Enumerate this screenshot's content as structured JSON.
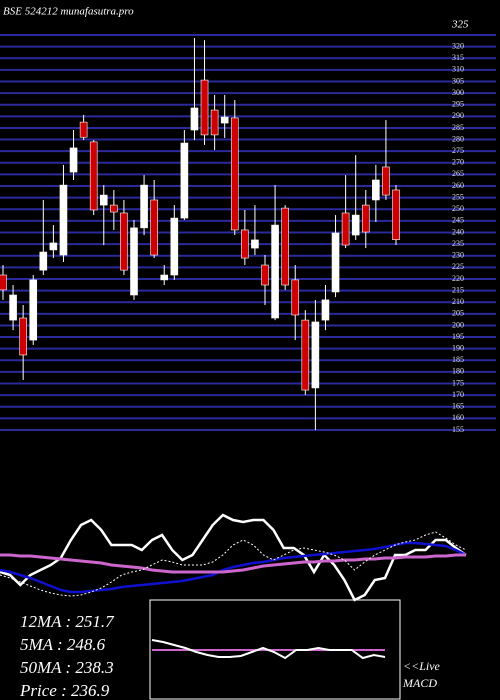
{
  "chart_data": [
    {
      "type": "candlestick",
      "title": "BSE 524212 munafasutra.pro",
      "ylim": [
        155,
        325
      ],
      "yticks": [
        155,
        160,
        165,
        170,
        175,
        180,
        185,
        190,
        195,
        200,
        205,
        210,
        215,
        220,
        225,
        230,
        235,
        240,
        245,
        250,
        255,
        260,
        265,
        270,
        275,
        280,
        285,
        290,
        295,
        300,
        305,
        310,
        315,
        320,
        325
      ],
      "grid": true,
      "grid_color": "#2a2a9c",
      "up_color": "#ffffff",
      "down_color": "#cc0000",
      "open": [
        221.7,
        202.3,
        203.2,
        193.7,
        223.8,
        232.5,
        230.3,
        266.0,
        287.5,
        279.0,
        251.8,
        251.8,
        248.4,
        213.1,
        242.0,
        254.0,
        219.6,
        221.7,
        246.2,
        284.1,
        305.6,
        292.7,
        287.1,
        289.3,
        241.1,
        233.3,
        226.0,
        203.2,
        250.5,
        219.6,
        202.3,
        173.1,
        202.3,
        214.4,
        248.4,
        238.9,
        251.8,
        254.0,
        268.2,
        258.3
      ],
      "high": [
        226.0,
        217.4,
        208.8,
        221.7,
        254.0,
        243.2,
        269.1,
        284.1,
        290.6,
        279.8,
        260.4,
        258.3,
        254.0,
        245.4,
        264.7,
        262.6,
        226.0,
        251.8,
        284.1,
        323.7,
        322.8,
        299.2,
        299.2,
        297.0,
        249.7,
        251.8,
        230.3,
        260.4,
        251.8,
        226.0,
        206.6,
        211.0,
        217.4,
        247.5,
        264.7,
        273.3,
        258.3,
        269.1,
        288.4,
        260.4
      ],
      "low": [
        211.0,
        198.0,
        176.5,
        191.6,
        221.7,
        229.0,
        227.3,
        262.6,
        279.8,
        247.5,
        234.6,
        241.1,
        221.7,
        211.0,
        238.9,
        229.0,
        217.4,
        219.6,
        245.4,
        279.8,
        277.7,
        275.5,
        280.7,
        238.9,
        226.0,
        230.3,
        208.8,
        202.3,
        215.3,
        193.7,
        170.1,
        155.0,
        198.0,
        212.2,
        233.3,
        236.8,
        233.3,
        244.5,
        254.0,
        234.6
      ],
      "close": [
        215.3,
        213.1,
        187.3,
        219.6,
        231.6,
        235.5,
        260.4,
        276.4,
        281.0,
        249.7,
        256.1,
        248.8,
        223.8,
        242.0,
        260.4,
        230.3,
        221.7,
        246.2,
        278.5,
        293.6,
        282.0,
        282.0,
        289.7,
        241.1,
        229.0,
        236.8,
        217.4,
        243.2,
        217.4,
        204.5,
        172.2,
        201.5,
        211.0,
        239.8,
        234.6,
        247.5,
        240.2,
        262.6,
        256.1,
        236.9
      ]
    },
    {
      "type": "line",
      "ylim": [
        0,
        110
      ],
      "annotations": [
        "12MA : 251.7",
        "5MA : 248.6",
        "50MA : 238.3",
        "Price  : 236.9"
      ],
      "series": [
        {
          "color": "#ffffff",
          "width": 2.5,
          "values": [
            28,
            25,
            15,
            25,
            30,
            35,
            42,
            60,
            75,
            80,
            70,
            55,
            55,
            55,
            50,
            60,
            65,
            50,
            40,
            45,
            60,
            75,
            85,
            80,
            78,
            80,
            80,
            70,
            52,
            52,
            45,
            28,
            45,
            35,
            20,
            0,
            5,
            20,
            22,
            45,
            45,
            50,
            50,
            60,
            60,
            52,
            45
          ]
        },
        {
          "color": "#1010d0",
          "width": 2.5,
          "values": [
            30,
            28,
            25,
            22,
            18,
            14,
            10,
            8,
            8,
            9,
            10,
            11,
            13,
            14,
            15,
            16,
            17,
            18,
            19,
            21,
            23,
            25,
            30,
            33,
            35,
            37,
            38,
            40,
            42,
            43,
            44,
            45,
            46,
            47,
            48,
            49,
            50,
            51,
            53,
            55,
            57,
            57,
            56,
            55,
            54,
            50,
            45
          ]
        },
        {
          "color": "#cc66cc",
          "width": 3,
          "values": [
            45,
            45,
            44,
            44,
            43,
            42,
            41,
            40,
            39,
            38,
            37,
            35,
            34,
            33,
            32,
            30,
            29,
            28,
            28,
            28,
            28,
            28,
            28,
            29,
            30,
            32,
            34,
            35,
            36,
            37,
            38,
            38,
            39,
            39,
            40,
            40,
            41,
            41,
            42,
            42,
            43,
            43,
            43,
            44,
            44,
            45,
            45
          ]
        },
        {
          "color": "#ffffff",
          "width": 1,
          "dash": true,
          "values": [
            25,
            22,
            18,
            14,
            10,
            7,
            5,
            4,
            5,
            8,
            12,
            18,
            25,
            28,
            30,
            35,
            40,
            38,
            35,
            35,
            35,
            38,
            45,
            55,
            60,
            55,
            45,
            40,
            45,
            50,
            52,
            50,
            48,
            45,
            40,
            30,
            38,
            45,
            50,
            55,
            58,
            60,
            65,
            68,
            62,
            55,
            50
          ]
        }
      ]
    },
    {
      "type": "line",
      "ylim": [
        0,
        100
      ],
      "annotations": [
        "<<Live",
        "MACD"
      ],
      "series": [
        {
          "color": "#cc66cc",
          "width": 2,
          "values": [
            50,
            50,
            50,
            50,
            50,
            50,
            50,
            50,
            50,
            50,
            50,
            50,
            50,
            50,
            50,
            50,
            50,
            50,
            50,
            50,
            50,
            50
          ]
        },
        {
          "color": "#ffffff",
          "width": 2,
          "values": [
            60,
            58,
            55,
            52,
            48,
            45,
            43,
            43,
            44,
            48,
            52,
            48,
            42,
            50,
            50,
            52,
            50,
            50,
            50,
            42,
            45,
            43
          ]
        }
      ]
    }
  ]
}
